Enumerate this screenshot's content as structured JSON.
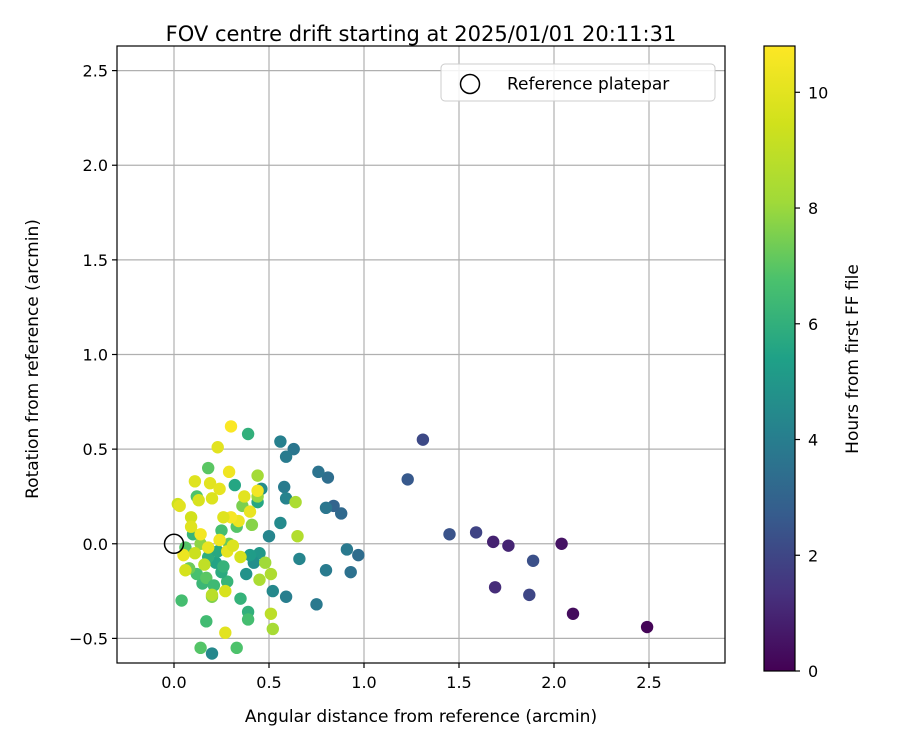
{
  "chart_data": {
    "type": "scatter",
    "title": "FOV centre drift starting at 2025/01/01 20:11:31",
    "xlabel": "Angular distance from reference (arcmin)",
    "ylabel": "Rotation from reference (arcmin)",
    "xlim": [
      -0.3,
      2.9
    ],
    "ylim": [
      -0.63,
      2.63
    ],
    "xticks": [
      0.0,
      0.5,
      1.0,
      1.5,
      2.0,
      2.5
    ],
    "xtick_labels": [
      "0.0",
      "0.5",
      "1.0",
      "1.5",
      "2.0",
      "2.5"
    ],
    "yticks": [
      -0.5,
      0.0,
      0.5,
      1.0,
      1.5,
      2.0,
      2.5
    ],
    "ytick_labels": [
      "−0.5",
      "0.0",
      "0.5",
      "1.0",
      "1.5",
      "2.0",
      "2.5"
    ],
    "grid": true,
    "legend": {
      "position": "top-right",
      "entries": [
        "Reference platepar"
      ]
    },
    "reference_point": {
      "x": 0.0,
      "y": 0.0,
      "marker": "open-circle"
    },
    "colorbar": {
      "label": "Hours from first FF file",
      "range": [
        0,
        10.8
      ],
      "ticks": [
        0,
        2,
        4,
        6,
        8,
        10
      ],
      "tick_labels": [
        "0",
        "2",
        "4",
        "6",
        "8",
        "10"
      ],
      "colormap": "viridis"
    },
    "series": [
      {
        "marker": "filled-circle",
        "points": [
          {
            "x": 2.49,
            "y": -0.44,
            "c": 0.1
          },
          {
            "x": 2.1,
            "y": -0.37,
            "c": 0.3
          },
          {
            "x": 2.04,
            "y": 0.0,
            "c": 0.5
          },
          {
            "x": 1.69,
            "y": -0.23,
            "c": 1.2
          },
          {
            "x": 1.68,
            "y": 0.01,
            "c": 0.9
          },
          {
            "x": 1.76,
            "y": -0.01,
            "c": 1.0
          },
          {
            "x": 1.89,
            "y": -0.09,
            "c": 2.3
          },
          {
            "x": 1.87,
            "y": -0.27,
            "c": 2.0
          },
          {
            "x": 1.59,
            "y": 0.06,
            "c": 1.9
          },
          {
            "x": 1.45,
            "y": 0.05,
            "c": 2.4
          },
          {
            "x": 1.31,
            "y": 0.55,
            "c": 2.1
          },
          {
            "x": 1.23,
            "y": 0.34,
            "c": 2.6
          },
          {
            "x": 0.97,
            "y": -0.06,
            "c": 3.3
          },
          {
            "x": 0.93,
            "y": -0.15,
            "c": 3.5
          },
          {
            "x": 0.91,
            "y": -0.03,
            "c": 3.8
          },
          {
            "x": 0.88,
            "y": 0.16,
            "c": 3.2
          },
          {
            "x": 0.84,
            "y": 0.2,
            "c": 3.0
          },
          {
            "x": 0.8,
            "y": 0.19,
            "c": 3.7
          },
          {
            "x": 0.8,
            "y": -0.14,
            "c": 3.9
          },
          {
            "x": 0.81,
            "y": 0.35,
            "c": 3.4
          },
          {
            "x": 0.76,
            "y": 0.38,
            "c": 3.6
          },
          {
            "x": 0.75,
            "y": -0.32,
            "c": 3.8
          },
          {
            "x": 0.66,
            "y": -0.08,
            "c": 4.3
          },
          {
            "x": 0.63,
            "y": 0.5,
            "c": 3.7
          },
          {
            "x": 0.59,
            "y": 0.46,
            "c": 3.9
          },
          {
            "x": 0.56,
            "y": 0.54,
            "c": 4.1
          },
          {
            "x": 0.58,
            "y": 0.3,
            "c": 3.9
          },
          {
            "x": 0.59,
            "y": 0.24,
            "c": 4.2
          },
          {
            "x": 0.59,
            "y": -0.28,
            "c": 4.0
          },
          {
            "x": 0.56,
            "y": 0.11,
            "c": 4.5
          },
          {
            "x": 0.52,
            "y": -0.25,
            "c": 4.4
          },
          {
            "x": 0.5,
            "y": 0.04,
            "c": 4.3
          },
          {
            "x": 0.46,
            "y": 0.29,
            "c": 4.6
          },
          {
            "x": 0.45,
            "y": -0.05,
            "c": 5.0
          },
          {
            "x": 0.42,
            "y": -0.1,
            "c": 4.7
          },
          {
            "x": 0.4,
            "y": -0.06,
            "c": 5.2
          },
          {
            "x": 0.38,
            "y": -0.16,
            "c": 4.8
          },
          {
            "x": 0.44,
            "y": 0.22,
            "c": 5.6
          },
          {
            "x": 0.39,
            "y": 0.58,
            "c": 6.0
          },
          {
            "x": 0.32,
            "y": 0.31,
            "c": 5.6
          },
          {
            "x": 0.35,
            "y": -0.29,
            "c": 6.1
          },
          {
            "x": 0.39,
            "y": -0.36,
            "c": 6.0
          },
          {
            "x": 0.39,
            "y": -0.4,
            "c": 6.6
          },
          {
            "x": 0.33,
            "y": -0.55,
            "c": 6.8
          },
          {
            "x": 0.2,
            "y": -0.58,
            "c": 4.4
          },
          {
            "x": 0.14,
            "y": -0.55,
            "c": 6.9
          },
          {
            "x": 0.17,
            "y": -0.41,
            "c": 6.5
          },
          {
            "x": 0.04,
            "y": -0.3,
            "c": 6.6
          },
          {
            "x": 0.2,
            "y": -0.28,
            "c": 7.6
          },
          {
            "x": 0.28,
            "y": -0.2,
            "c": 6.2
          },
          {
            "x": 0.25,
            "y": -0.15,
            "c": 5.8
          },
          {
            "x": 0.22,
            "y": -0.1,
            "c": 5.5
          },
          {
            "x": 0.18,
            "y": -0.07,
            "c": 5.9
          },
          {
            "x": 0.15,
            "y": -0.21,
            "c": 6.3
          },
          {
            "x": 0.12,
            "y": -0.16,
            "c": 6.7
          },
          {
            "x": 0.17,
            "y": -0.18,
            "c": 7.0
          },
          {
            "x": 0.21,
            "y": -0.22,
            "c": 6.4
          },
          {
            "x": 0.26,
            "y": -0.12,
            "c": 6.1
          },
          {
            "x": 0.23,
            "y": -0.04,
            "c": 5.7
          },
          {
            "x": 0.1,
            "y": 0.05,
            "c": 6.2
          },
          {
            "x": 0.06,
            "y": -0.02,
            "c": 6.9
          },
          {
            "x": 0.08,
            "y": -0.13,
            "c": 7.3
          },
          {
            "x": 0.14,
            "y": 0.0,
            "c": 7.8
          },
          {
            "x": 0.12,
            "y": 0.25,
            "c": 6.8
          },
          {
            "x": 0.18,
            "y": 0.4,
            "c": 7.0
          },
          {
            "x": 0.25,
            "y": 0.07,
            "c": 6.6
          },
          {
            "x": 0.29,
            "y": 0.0,
            "c": 7.2
          },
          {
            "x": 0.33,
            "y": 0.09,
            "c": 6.9
          },
          {
            "x": 0.36,
            "y": 0.2,
            "c": 7.5
          },
          {
            "x": 0.41,
            "y": 0.1,
            "c": 7.7
          },
          {
            "x": 0.44,
            "y": 0.25,
            "c": 8.0
          },
          {
            "x": 0.44,
            "y": 0.36,
            "c": 8.2
          },
          {
            "x": 0.48,
            "y": -0.1,
            "c": 8.1
          },
          {
            "x": 0.45,
            "y": -0.19,
            "c": 8.4
          },
          {
            "x": 0.51,
            "y": -0.16,
            "c": 8.5
          },
          {
            "x": 0.52,
            "y": -0.45,
            "c": 8.3
          },
          {
            "x": 0.64,
            "y": 0.22,
            "c": 8.4
          },
          {
            "x": 0.65,
            "y": 0.04,
            "c": 8.6
          },
          {
            "x": 0.51,
            "y": -0.37,
            "c": 8.9
          },
          {
            "x": 0.2,
            "y": -0.27,
            "c": 8.8
          },
          {
            "x": 0.16,
            "y": -0.11,
            "c": 9.0
          },
          {
            "x": 0.11,
            "y": -0.05,
            "c": 9.3
          },
          {
            "x": 0.06,
            "y": -0.14,
            "c": 9.6
          },
          {
            "x": 0.02,
            "y": 0.21,
            "c": 9.4
          },
          {
            "x": 0.09,
            "y": 0.14,
            "c": 9.5
          },
          {
            "x": 0.13,
            "y": 0.23,
            "c": 9.7
          },
          {
            "x": 0.11,
            "y": 0.33,
            "c": 9.9
          },
          {
            "x": 0.2,
            "y": 0.24,
            "c": 9.8
          },
          {
            "x": 0.19,
            "y": 0.32,
            "c": 10.0
          },
          {
            "x": 0.24,
            "y": 0.29,
            "c": 10.1
          },
          {
            "x": 0.23,
            "y": 0.51,
            "c": 10.0
          },
          {
            "x": 0.29,
            "y": 0.38,
            "c": 10.4
          },
          {
            "x": 0.3,
            "y": 0.62,
            "c": 10.7
          },
          {
            "x": 0.37,
            "y": 0.25,
            "c": 10.0
          },
          {
            "x": 0.4,
            "y": 0.17,
            "c": 10.2
          },
          {
            "x": 0.44,
            "y": 0.28,
            "c": 10.5
          },
          {
            "x": 0.34,
            "y": 0.12,
            "c": 10.3
          },
          {
            "x": 0.3,
            "y": 0.14,
            "c": 10.6
          },
          {
            "x": 0.26,
            "y": 0.14,
            "c": 9.9
          },
          {
            "x": 0.24,
            "y": 0.02,
            "c": 10.4
          },
          {
            "x": 0.28,
            "y": -0.04,
            "c": 10.1
          },
          {
            "x": 0.31,
            "y": -0.01,
            "c": 9.8
          },
          {
            "x": 0.35,
            "y": -0.07,
            "c": 9.6
          },
          {
            "x": 0.27,
            "y": -0.25,
            "c": 9.7
          },
          {
            "x": 0.27,
            "y": -0.47,
            "c": 10.0
          },
          {
            "x": 0.18,
            "y": -0.02,
            "c": 10.2
          },
          {
            "x": 0.14,
            "y": 0.05,
            "c": 10.5
          },
          {
            "x": 0.09,
            "y": 0.09,
            "c": 9.9
          },
          {
            "x": 0.05,
            "y": -0.06,
            "c": 10.3
          },
          {
            "x": 0.03,
            "y": 0.2,
            "c": 10.0
          }
        ]
      }
    ]
  }
}
